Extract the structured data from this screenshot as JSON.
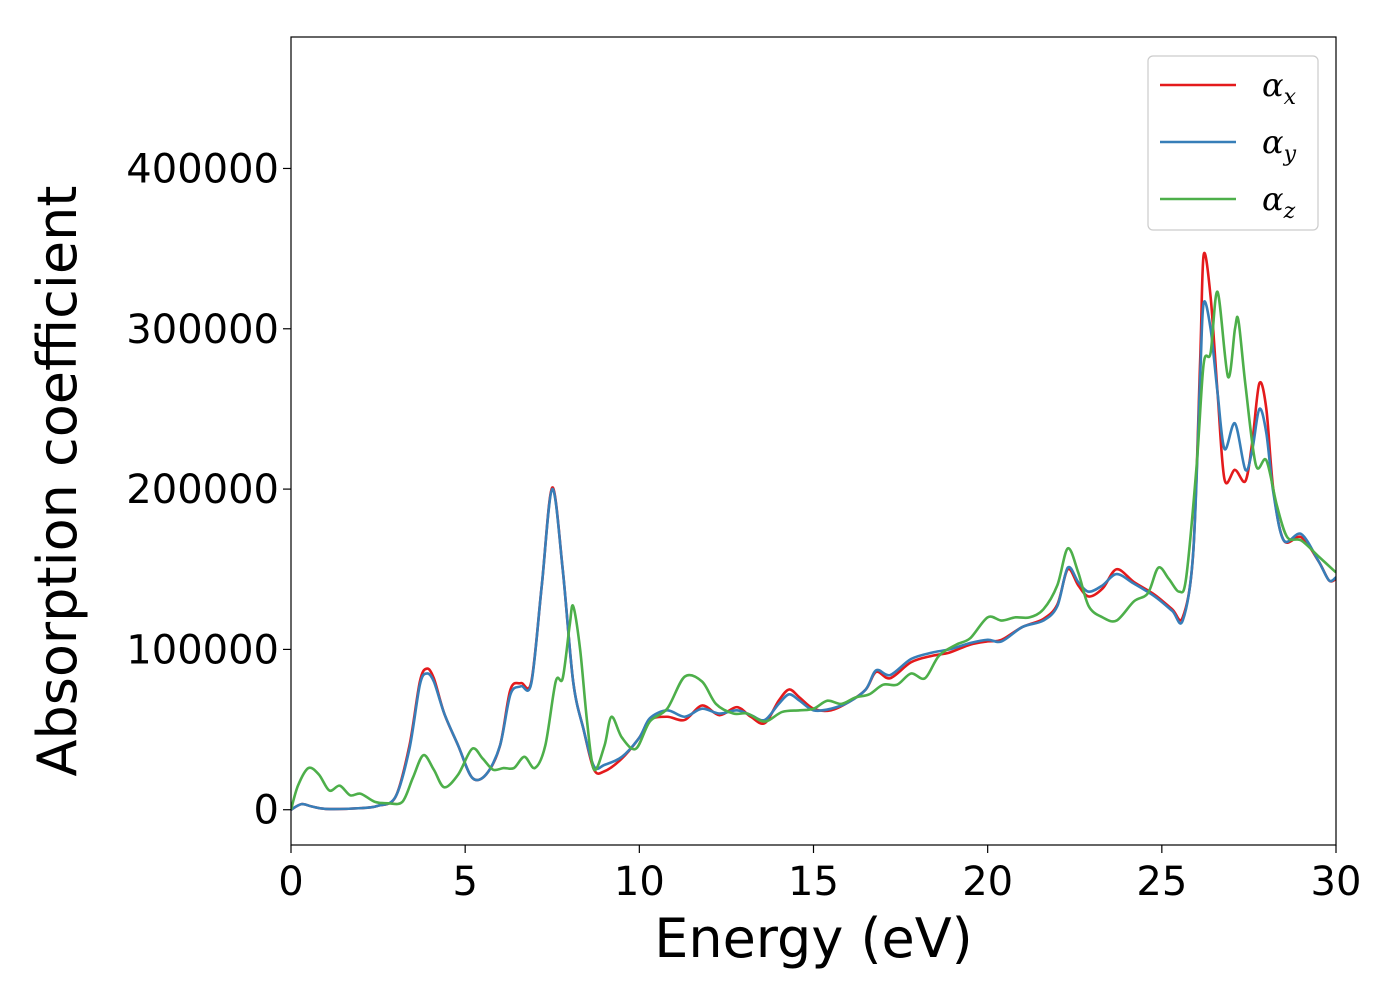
{
  "chart_data": {
    "type": "line",
    "xlabel": "Energy (eV)",
    "ylabel": "Absorption coefficient",
    "xlim": [
      0,
      30
    ],
    "ylim": [
      -22000,
      482000
    ],
    "xticks": [
      0,
      5,
      10,
      15,
      20,
      25,
      30
    ],
    "yticks": [
      0,
      100000,
      200000,
      300000,
      400000
    ],
    "grid": false,
    "legend_position": "top-right",
    "series": [
      {
        "name": "α",
        "subscript": "x",
        "color": "#e41a1c",
        "points": [
          [
            0,
            0
          ],
          [
            0.3,
            3500
          ],
          [
            0.6,
            2000
          ],
          [
            1,
            500
          ],
          [
            2,
            1000
          ],
          [
            2.5,
            2500
          ],
          [
            3,
            8000
          ],
          [
            3.4,
            40000
          ],
          [
            3.7,
            80000
          ],
          [
            3.9,
            88000
          ],
          [
            4.1,
            82000
          ],
          [
            4.4,
            60000
          ],
          [
            4.8,
            40000
          ],
          [
            5.2,
            20000
          ],
          [
            5.6,
            22000
          ],
          [
            6,
            40000
          ],
          [
            6.3,
            75000
          ],
          [
            6.6,
            79000
          ],
          [
            6.9,
            80000
          ],
          [
            7.2,
            140000
          ],
          [
            7.5,
            201000
          ],
          [
            7.8,
            150000
          ],
          [
            8.1,
            80000
          ],
          [
            8.4,
            50000
          ],
          [
            8.7,
            25000
          ],
          [
            9,
            24000
          ],
          [
            9.5,
            32000
          ],
          [
            10,
            45000
          ],
          [
            10.3,
            56000
          ],
          [
            10.8,
            58000
          ],
          [
            11.3,
            56000
          ],
          [
            11.8,
            65000
          ],
          [
            12.3,
            59000
          ],
          [
            12.8,
            64000
          ],
          [
            13.2,
            58000
          ],
          [
            13.6,
            54000
          ],
          [
            14,
            68000
          ],
          [
            14.3,
            75000
          ],
          [
            14.6,
            70000
          ],
          [
            15,
            63000
          ],
          [
            15.5,
            62000
          ],
          [
            16,
            67000
          ],
          [
            16.5,
            75000
          ],
          [
            16.8,
            86000
          ],
          [
            17.2,
            82000
          ],
          [
            17.8,
            92000
          ],
          [
            18.4,
            96000
          ],
          [
            18.9,
            98000
          ],
          [
            19.5,
            103000
          ],
          [
            20,
            105000
          ],
          [
            20.4,
            106000
          ],
          [
            21,
            114000
          ],
          [
            21.6,
            119000
          ],
          [
            22,
            128000
          ],
          [
            22.3,
            150000
          ],
          [
            22.6,
            140000
          ],
          [
            22.9,
            133000
          ],
          [
            23.3,
            138000
          ],
          [
            23.7,
            150000
          ],
          [
            24.2,
            142000
          ],
          [
            24.8,
            134000
          ],
          [
            25.3,
            125000
          ],
          [
            25.6,
            120000
          ],
          [
            25.9,
            160000
          ],
          [
            26.1,
            280000
          ],
          [
            26.2,
            346000
          ],
          [
            26.4,
            320000
          ],
          [
            26.6,
            260000
          ],
          [
            26.8,
            206000
          ],
          [
            27.1,
            212000
          ],
          [
            27.4,
            205000
          ],
          [
            27.6,
            230000
          ],
          [
            27.8,
            266000
          ],
          [
            28,
            250000
          ],
          [
            28.2,
            200000
          ],
          [
            28.5,
            168000
          ],
          [
            29,
            170000
          ],
          [
            29.5,
            155000
          ],
          [
            29.8,
            143000
          ],
          [
            30,
            144000
          ]
        ]
      },
      {
        "name": "α",
        "subscript": "y",
        "color": "#377eb8",
        "points": [
          [
            0,
            0
          ],
          [
            0.3,
            3500
          ],
          [
            0.6,
            2000
          ],
          [
            1,
            500
          ],
          [
            2,
            1000
          ],
          [
            2.5,
            2500
          ],
          [
            3,
            8000
          ],
          [
            3.4,
            38000
          ],
          [
            3.7,
            78000
          ],
          [
            3.9,
            85000
          ],
          [
            4.1,
            80000
          ],
          [
            4.4,
            60000
          ],
          [
            4.8,
            40000
          ],
          [
            5.2,
            20000
          ],
          [
            5.6,
            22000
          ],
          [
            6,
            40000
          ],
          [
            6.3,
            72000
          ],
          [
            6.6,
            77000
          ],
          [
            6.9,
            79000
          ],
          [
            7.2,
            140000
          ],
          [
            7.5,
            200000
          ],
          [
            7.8,
            150000
          ],
          [
            8.1,
            80000
          ],
          [
            8.4,
            50000
          ],
          [
            8.7,
            27000
          ],
          [
            9,
            28000
          ],
          [
            9.5,
            33000
          ],
          [
            10,
            45000
          ],
          [
            10.3,
            57000
          ],
          [
            10.8,
            62000
          ],
          [
            11.3,
            58000
          ],
          [
            11.8,
            63000
          ],
          [
            12.3,
            60000
          ],
          [
            12.8,
            62000
          ],
          [
            13.2,
            59000
          ],
          [
            13.6,
            56000
          ],
          [
            14,
            66000
          ],
          [
            14.3,
            72000
          ],
          [
            14.6,
            68000
          ],
          [
            15,
            62000
          ],
          [
            15.5,
            63000
          ],
          [
            16,
            67000
          ],
          [
            16.5,
            75000
          ],
          [
            16.8,
            87000
          ],
          [
            17.2,
            84000
          ],
          [
            17.8,
            94000
          ],
          [
            18.4,
            98000
          ],
          [
            18.9,
            100000
          ],
          [
            19.5,
            104000
          ],
          [
            20,
            106000
          ],
          [
            20.4,
            105000
          ],
          [
            21,
            114000
          ],
          [
            21.6,
            118000
          ],
          [
            22,
            127000
          ],
          [
            22.3,
            151000
          ],
          [
            22.6,
            142000
          ],
          [
            22.9,
            136000
          ],
          [
            23.3,
            140000
          ],
          [
            23.7,
            147000
          ],
          [
            24.2,
            141000
          ],
          [
            24.8,
            133000
          ],
          [
            25.3,
            124000
          ],
          [
            25.6,
            118000
          ],
          [
            25.9,
            160000
          ],
          [
            26.1,
            270000
          ],
          [
            26.2,
            316000
          ],
          [
            26.4,
            300000
          ],
          [
            26.6,
            260000
          ],
          [
            26.8,
            225000
          ],
          [
            27.1,
            241000
          ],
          [
            27.4,
            212000
          ],
          [
            27.6,
            225000
          ],
          [
            27.8,
            250000
          ],
          [
            28,
            235000
          ],
          [
            28.2,
            198000
          ],
          [
            28.5,
            168000
          ],
          [
            29,
            172000
          ],
          [
            29.5,
            155000
          ],
          [
            29.8,
            143000
          ],
          [
            30,
            145000
          ]
        ]
      },
      {
        "name": "α",
        "subscript": "z",
        "color": "#4daf4a",
        "points": [
          [
            0,
            0
          ],
          [
            0.2,
            15000
          ],
          [
            0.5,
            26000
          ],
          [
            0.8,
            22000
          ],
          [
            1.1,
            12000
          ],
          [
            1.4,
            15000
          ],
          [
            1.7,
            9000
          ],
          [
            2,
            10000
          ],
          [
            2.4,
            5000
          ],
          [
            2.8,
            4000
          ],
          [
            3.2,
            5000
          ],
          [
            3.5,
            20000
          ],
          [
            3.8,
            34000
          ],
          [
            4.1,
            25000
          ],
          [
            4.4,
            14000
          ],
          [
            4.8,
            22000
          ],
          [
            5.2,
            38000
          ],
          [
            5.5,
            32000
          ],
          [
            5.8,
            25000
          ],
          [
            6.1,
            26000
          ],
          [
            6.4,
            26000
          ],
          [
            6.7,
            33000
          ],
          [
            7,
            26000
          ],
          [
            7.3,
            40000
          ],
          [
            7.6,
            80000
          ],
          [
            7.8,
            82000
          ],
          [
            8,
            115000
          ],
          [
            8.1,
            127000
          ],
          [
            8.3,
            100000
          ],
          [
            8.5,
            55000
          ],
          [
            8.7,
            25000
          ],
          [
            9,
            40000
          ],
          [
            9.2,
            58000
          ],
          [
            9.5,
            45000
          ],
          [
            9.9,
            38000
          ],
          [
            10.3,
            55000
          ],
          [
            10.8,
            63000
          ],
          [
            11.3,
            83000
          ],
          [
            11.8,
            80000
          ],
          [
            12.2,
            66000
          ],
          [
            12.7,
            60000
          ],
          [
            13.1,
            60000
          ],
          [
            13.6,
            55000
          ],
          [
            14.1,
            61000
          ],
          [
            14.6,
            62000
          ],
          [
            15,
            63000
          ],
          [
            15.4,
            68000
          ],
          [
            15.8,
            66000
          ],
          [
            16.2,
            70000
          ],
          [
            16.6,
            72000
          ],
          [
            17,
            78000
          ],
          [
            17.4,
            78000
          ],
          [
            17.8,
            85000
          ],
          [
            18.2,
            82000
          ],
          [
            18.6,
            96000
          ],
          [
            19.1,
            103000
          ],
          [
            19.5,
            107000
          ],
          [
            20,
            120000
          ],
          [
            20.4,
            118000
          ],
          [
            20.8,
            120000
          ],
          [
            21.2,
            120000
          ],
          [
            21.6,
            125000
          ],
          [
            22,
            140000
          ],
          [
            22.3,
            163000
          ],
          [
            22.6,
            148000
          ],
          [
            22.9,
            127000
          ],
          [
            23.3,
            120000
          ],
          [
            23.7,
            118000
          ],
          [
            24.2,
            130000
          ],
          [
            24.6,
            135000
          ],
          [
            24.9,
            151000
          ],
          [
            25.2,
            144000
          ],
          [
            25.5,
            136000
          ],
          [
            25.7,
            145000
          ],
          [
            26,
            215000
          ],
          [
            26.2,
            278000
          ],
          [
            26.4,
            285000
          ],
          [
            26.6,
            323000
          ],
          [
            26.9,
            270000
          ],
          [
            27.1,
            300000
          ],
          [
            27.2,
            305000
          ],
          [
            27.4,
            265000
          ],
          [
            27.7,
            215000
          ],
          [
            28,
            218000
          ],
          [
            28.3,
            190000
          ],
          [
            28.6,
            170000
          ],
          [
            29,
            168000
          ],
          [
            29.5,
            158000
          ],
          [
            30,
            148000
          ]
        ]
      }
    ]
  }
}
